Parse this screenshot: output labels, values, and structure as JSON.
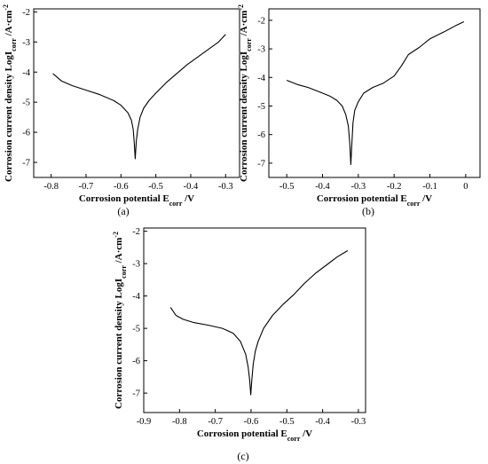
{
  "chart_data": [
    {
      "type": "line",
      "panel_label": "(a)",
      "xlabel": "Corrosion potential E",
      "xlabel_sub": "corr",
      "xlabel_unit": " /V",
      "ylabel": "Corrosion current density LogI",
      "ylabel_sub": "corr",
      "ylabel_unit": " /A·cm",
      "ylabel_sup": "-2",
      "xlim": [
        -0.85,
        -0.26
      ],
      "ylim": [
        -7.5,
        -1.9
      ],
      "xticks": [
        -0.8,
        -0.7,
        -0.6,
        -0.5,
        -0.4,
        -0.3
      ],
      "xtick_labels": [
        "-0.8",
        "-0.7",
        "-0.6",
        "-0.5",
        "-0.4",
        "-0.3"
      ],
      "yticks": [
        -7,
        -6,
        -5,
        -4,
        -3,
        -2
      ],
      "ytick_labels": [
        "-7",
        "-6",
        "-5",
        "-4",
        "-3",
        "-2"
      ],
      "series": [
        {
          "x": [
            -0.795,
            -0.77,
            -0.74,
            -0.7,
            -0.66,
            -0.62,
            -0.6,
            -0.58,
            -0.57,
            -0.565,
            -0.562,
            -0.559,
            -0.556,
            -0.552,
            -0.545,
            -0.535,
            -0.52,
            -0.5,
            -0.47,
            -0.44,
            -0.41,
            -0.38,
            -0.35,
            -0.32,
            -0.3
          ],
          "y": [
            -4.05,
            -4.3,
            -4.45,
            -4.6,
            -4.75,
            -4.95,
            -5.1,
            -5.35,
            -5.6,
            -5.9,
            -6.3,
            -6.88,
            -6.3,
            -5.9,
            -5.5,
            -5.2,
            -4.95,
            -4.7,
            -4.35,
            -4.05,
            -3.75,
            -3.5,
            -3.25,
            -3.0,
            -2.75
          ]
        }
      ]
    },
    {
      "type": "line",
      "panel_label": "(b)",
      "xlabel": "Corrosion potential E",
      "xlabel_sub": "corr",
      "xlabel_unit": " /V",
      "ylabel": "Corrosion current density LogI",
      "ylabel_sub": "corr",
      "ylabel_unit": " /A·cm",
      "ylabel_sup": "-2",
      "xlim": [
        -0.55,
        0.04
      ],
      "ylim": [
        -7.5,
        -1.6
      ],
      "xticks": [
        -0.5,
        -0.4,
        -0.3,
        -0.2,
        -0.1,
        0.0
      ],
      "xtick_labels": [
        "-0.5",
        "-0.4",
        "-0.3",
        "-0.2",
        "-0.1",
        "0"
      ],
      "yticks": [
        -7,
        -6,
        -5,
        -4,
        -3,
        -2
      ],
      "ytick_labels": [
        "-7",
        "-6",
        "-5",
        "-4",
        "-3",
        "-2"
      ],
      "series": [
        {
          "x": [
            -0.5,
            -0.47,
            -0.44,
            -0.41,
            -0.38,
            -0.36,
            -0.345,
            -0.335,
            -0.328,
            -0.324,
            -0.321,
            -0.318,
            -0.315,
            -0.31,
            -0.3,
            -0.285,
            -0.26,
            -0.23,
            -0.2,
            -0.18,
            -0.16,
            -0.13,
            -0.1,
            -0.06,
            -0.03,
            -0.005
          ],
          "y": [
            -4.1,
            -4.25,
            -4.35,
            -4.5,
            -4.65,
            -4.8,
            -5.0,
            -5.3,
            -5.7,
            -6.3,
            -7.05,
            -6.3,
            -5.6,
            -5.15,
            -4.85,
            -4.55,
            -4.35,
            -4.2,
            -3.95,
            -3.6,
            -3.2,
            -2.95,
            -2.65,
            -2.4,
            -2.2,
            -2.05
          ]
        }
      ]
    },
    {
      "type": "line",
      "panel_label": "(c)",
      "xlabel": "Corrosion potential E",
      "xlabel_sub": "corr",
      "xlabel_unit": " /V",
      "ylabel": "Corrosion current density LogI",
      "ylabel_sub": "corr",
      "ylabel_unit": " /A·cm",
      "ylabel_sup": "-2",
      "xlim": [
        -0.9,
        -0.28
      ],
      "ylim": [
        -7.6,
        -1.9
      ],
      "xticks": [
        -0.9,
        -0.8,
        -0.7,
        -0.6,
        -0.5,
        -0.4,
        -0.3
      ],
      "xtick_labels": [
        "-0.9",
        "-0.8",
        "-0.7",
        "-0.6",
        "-0.5",
        "-0.4",
        "-0.3"
      ],
      "yticks": [
        -7,
        -6,
        -5,
        -4,
        -3,
        -2
      ],
      "ytick_labels": [
        "-7",
        "-6",
        "-5",
        "-4",
        "-3",
        "-2"
      ],
      "series": [
        {
          "x": [
            -0.825,
            -0.81,
            -0.79,
            -0.76,
            -0.72,
            -0.68,
            -0.65,
            -0.63,
            -0.615,
            -0.608,
            -0.604,
            -0.601,
            -0.598,
            -0.594,
            -0.588,
            -0.58,
            -0.565,
            -0.54,
            -0.51,
            -0.48,
            -0.45,
            -0.42,
            -0.39,
            -0.36,
            -0.33
          ],
          "y": [
            -4.35,
            -4.6,
            -4.72,
            -4.82,
            -4.9,
            -5.0,
            -5.15,
            -5.4,
            -5.8,
            -6.2,
            -6.6,
            -7.05,
            -6.6,
            -6.1,
            -5.7,
            -5.4,
            -5.0,
            -4.6,
            -4.25,
            -3.95,
            -3.6,
            -3.3,
            -3.05,
            -2.8,
            -2.6
          ]
        }
      ]
    }
  ]
}
